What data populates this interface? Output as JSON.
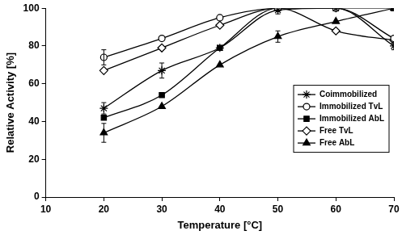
{
  "chart_data": {
    "type": "line",
    "x_label": "Temperature [°C]",
    "y_label": "Relative Activity [%]",
    "x": [
      20,
      30,
      40,
      50,
      60,
      70
    ],
    "xlim": [
      10,
      70
    ],
    "xticks": [
      10,
      20,
      30,
      40,
      50,
      60,
      70
    ],
    "ylim": [
      0,
      100
    ],
    "yticks": [
      0,
      20,
      40,
      60,
      80,
      100
    ],
    "grid": false,
    "legend": "right",
    "series": [
      {
        "name": "Coimmobilized",
        "color": "#000000",
        "marker": "asterisk",
        "line_style": "smooth",
        "values": [
          47,
          67,
          79,
          99,
          100,
          80
        ],
        "errors": [
          3,
          4,
          null,
          2,
          null,
          2
        ]
      },
      {
        "name": "Immobilized TvL",
        "color": "#000000",
        "marker": "circle-open",
        "line_style": "smooth",
        "values": [
          74,
          84,
          95,
          100,
          100,
          84
        ],
        "errors": [
          4,
          null,
          null,
          null,
          null,
          null
        ]
      },
      {
        "name": "Immobilized AbL",
        "color": "#000000",
        "marker": "square",
        "line_style": "smooth",
        "values": [
          42,
          54,
          79,
          100,
          100,
          100
        ],
        "errors": [
          null,
          null,
          null,
          null,
          null,
          null
        ]
      },
      {
        "name": "Free TvL",
        "color": "#000000",
        "marker": "diamond-open",
        "line_style": "smooth",
        "values": [
          67,
          79,
          91,
          100,
          88,
          83
        ],
        "errors": [
          null,
          null,
          null,
          null,
          null,
          null
        ]
      },
      {
        "name": "Free AbL",
        "color": "#000000",
        "marker": "triangle",
        "line_style": "smooth",
        "values": [
          34,
          48,
          70,
          85,
          93,
          100
        ],
        "errors": [
          5,
          null,
          null,
          3,
          null,
          null
        ]
      }
    ]
  }
}
